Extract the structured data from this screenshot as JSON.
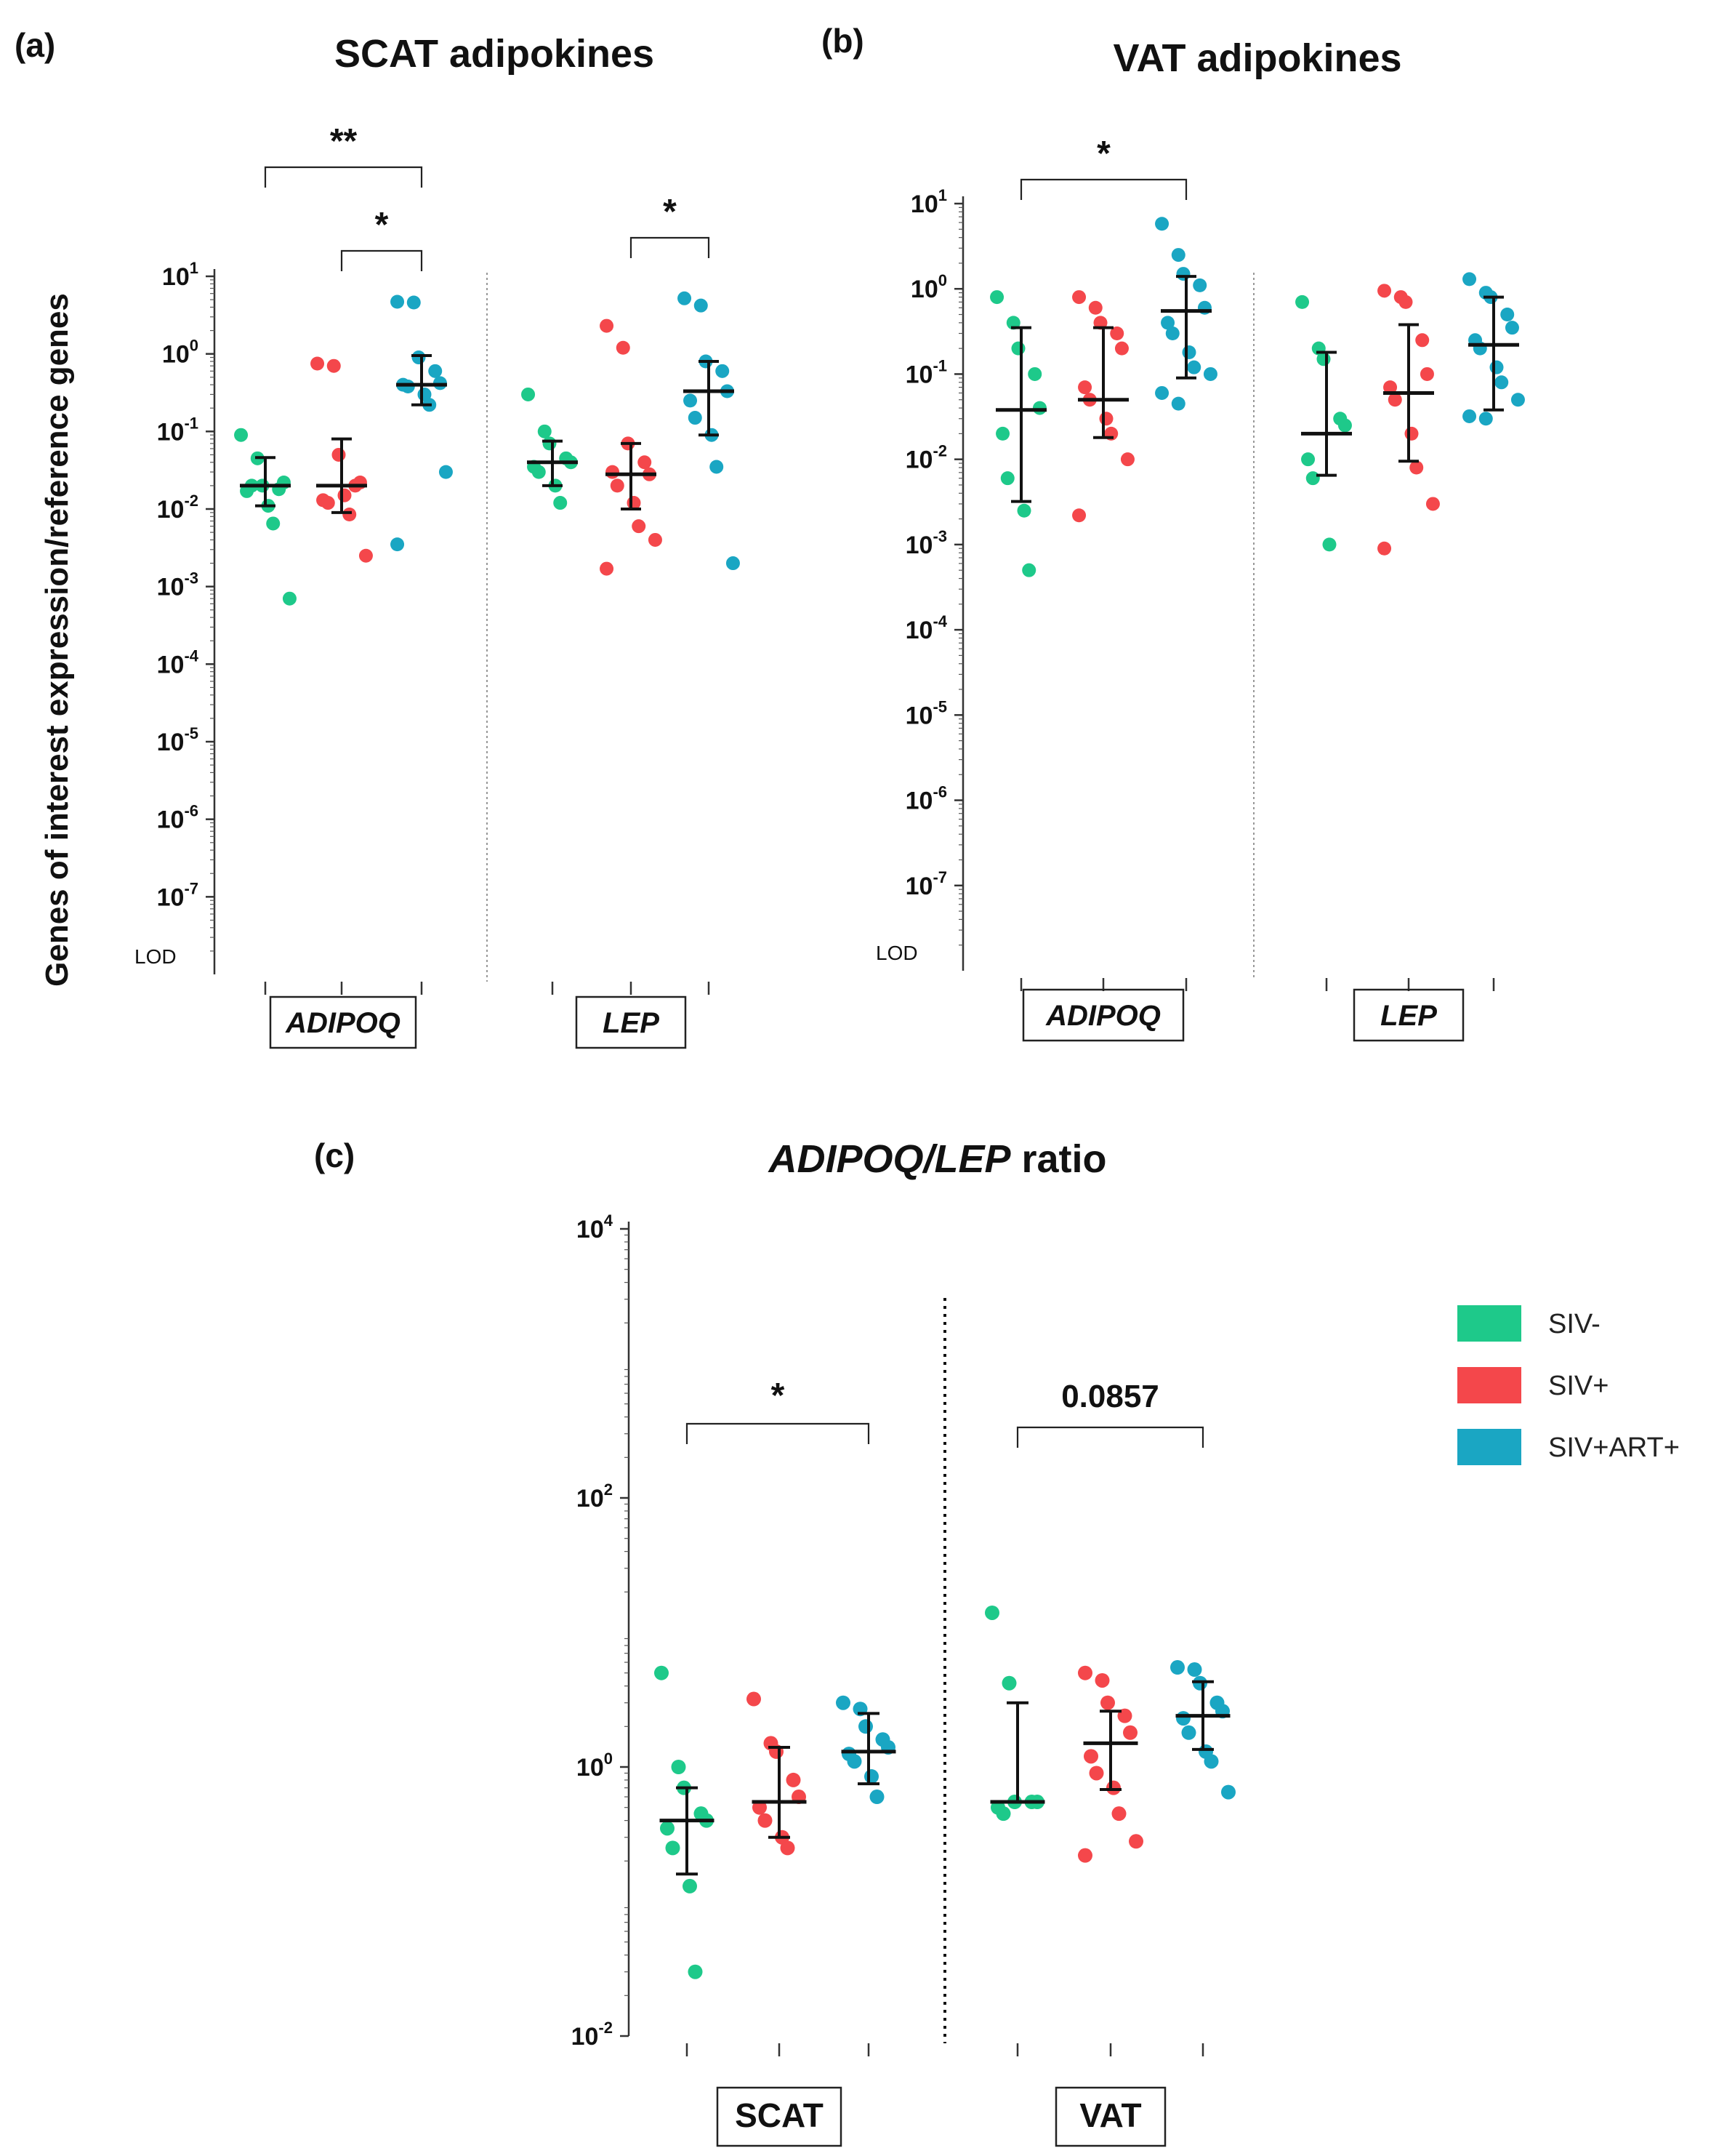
{
  "colors": {
    "SIV-": "#1ec98a",
    "SIV+": "#f4474b",
    "SIV+ART+": "#1aa6c3"
  },
  "legend": [
    {
      "label": "SIV-",
      "color": "#1ec98a"
    },
    {
      "label": "SIV+",
      "color": "#f4474b"
    },
    {
      "label": "SIV+ART+",
      "color": "#1aa6c3"
    }
  ],
  "ylabel_shared": "Genes of interest expression/reference genes",
  "chart_data": [
    {
      "panel": "(a)",
      "title": "SCAT adipokines",
      "type": "scatter",
      "yscale": "log",
      "ylim": [
        1e-08,
        10
      ],
      "ticks": [
        {
          "b": "10",
          "e": "1"
        },
        {
          "b": "10",
          "e": "0"
        },
        {
          "b": "10",
          "e": "-1"
        },
        {
          "b": "10",
          "e": "-2"
        },
        {
          "b": "10",
          "e": "-3"
        },
        {
          "b": "10",
          "e": "-4"
        },
        {
          "b": "10",
          "e": "-5"
        },
        {
          "b": "10",
          "e": "-6"
        },
        {
          "b": "10",
          "e": "-7"
        }
      ],
      "lod_label": "LOD",
      "categories": [
        "ADIPOQ",
        "LEP"
      ],
      "groups": [
        {
          "category": "ADIPOQ",
          "series": "SIV-",
          "median": 0.02,
          "range": [
            0.011,
            0.046
          ],
          "points": [
            0.09,
            0.045,
            0.02,
            0.018,
            0.022,
            0.017,
            0.02,
            0.011,
            0.0065,
            0.0007
          ]
        },
        {
          "category": "ADIPOQ",
          "series": "SIV+",
          "median": 0.02,
          "range": [
            0.009,
            0.08
          ],
          "points": [
            0.75,
            0.7,
            0.05,
            0.02,
            0.022,
            0.013,
            0.012,
            0.015,
            0.0085,
            0.0025
          ]
        },
        {
          "category": "ADIPOQ",
          "series": "SIV+ART+",
          "median": 0.4,
          "range": [
            0.22,
            0.95
          ],
          "points": [
            4.7,
            4.6,
            0.9,
            0.6,
            0.42,
            0.4,
            0.38,
            0.3,
            0.22,
            0.03,
            0.0035
          ]
        },
        {
          "category": "LEP",
          "series": "SIV-",
          "median": 0.04,
          "range": [
            0.02,
            0.075
          ],
          "points": [
            0.3,
            0.1,
            0.07,
            0.045,
            0.04,
            0.035,
            0.03,
            0.02,
            0.012
          ]
        },
        {
          "category": "LEP",
          "series": "SIV+",
          "median": 0.028,
          "range": [
            0.01,
            0.07
          ],
          "points": [
            2.3,
            1.2,
            0.07,
            0.04,
            0.028,
            0.03,
            0.02,
            0.012,
            0.006,
            0.004,
            0.0017
          ]
        },
        {
          "category": "LEP",
          "series": "SIV+ART+",
          "median": 0.33,
          "range": [
            0.09,
            0.8
          ],
          "points": [
            5.2,
            4.2,
            0.8,
            0.6,
            0.33,
            0.25,
            0.15,
            0.09,
            0.035,
            0.002
          ]
        }
      ],
      "brackets": [
        {
          "from": 0,
          "to": 2,
          "label": "**"
        },
        {
          "from": 1,
          "to": 2,
          "label": "*"
        },
        {
          "from": 4,
          "to": 5,
          "label": "*"
        }
      ]
    },
    {
      "panel": "(b)",
      "title": "VAT adipokines",
      "type": "scatter",
      "yscale": "log",
      "ylim": [
        1e-08,
        10
      ],
      "ticks": [
        {
          "b": "10",
          "e": "1"
        },
        {
          "b": "10",
          "e": "0"
        },
        {
          "b": "10",
          "e": "-1"
        },
        {
          "b": "10",
          "e": "-2"
        },
        {
          "b": "10",
          "e": "-3"
        },
        {
          "b": "10",
          "e": "-4"
        },
        {
          "b": "10",
          "e": "-5"
        },
        {
          "b": "10",
          "e": "-6"
        },
        {
          "b": "10",
          "e": "-7"
        }
      ],
      "lod_label": "LOD",
      "categories": [
        "ADIPOQ",
        "LEP"
      ],
      "groups": [
        {
          "category": "ADIPOQ",
          "series": "SIV-",
          "median": 0.038,
          "range": [
            0.0032,
            0.35
          ],
          "points": [
            0.8,
            0.4,
            0.2,
            0.1,
            0.04,
            0.02,
            0.006,
            0.0025,
            0.0005
          ]
        },
        {
          "category": "ADIPOQ",
          "series": "SIV+",
          "median": 0.05,
          "range": [
            0.018,
            0.35
          ],
          "points": [
            0.8,
            0.6,
            0.4,
            0.3,
            0.2,
            0.07,
            0.05,
            0.03,
            0.02,
            0.01,
            0.0022
          ]
        },
        {
          "category": "ADIPOQ",
          "series": "SIV+ART+",
          "median": 0.55,
          "range": [
            0.09,
            1.4
          ],
          "points": [
            5.8,
            2.5,
            1.5,
            1.1,
            0.6,
            0.4,
            0.3,
            0.18,
            0.12,
            0.1,
            0.06,
            0.045
          ]
        },
        {
          "category": "LEP",
          "series": "SIV-",
          "median": 0.02,
          "range": [
            0.0065,
            0.18
          ],
          "points": [
            0.7,
            0.2,
            0.15,
            0.03,
            0.025,
            0.01,
            0.006,
            0.001
          ]
        },
        {
          "category": "LEP",
          "series": "SIV+",
          "median": 0.06,
          "range": [
            0.0095,
            0.38
          ],
          "points": [
            0.95,
            0.8,
            0.7,
            0.25,
            0.1,
            0.07,
            0.05,
            0.02,
            0.008,
            0.003,
            0.0009
          ]
        },
        {
          "category": "LEP",
          "series": "SIV+ART+",
          "median": 0.22,
          "range": [
            0.038,
            0.8
          ],
          "points": [
            1.3,
            0.9,
            0.8,
            0.5,
            0.35,
            0.25,
            0.2,
            0.12,
            0.08,
            0.05,
            0.032,
            0.03
          ]
        }
      ],
      "brackets": [
        {
          "from": 0,
          "to": 2,
          "label": "*"
        }
      ]
    },
    {
      "panel": "(c)",
      "title_italic": "ADIPOQ/LEP",
      "title_rest": " ratio",
      "type": "scatter",
      "yscale": "log",
      "ylim": [
        0.01,
        10000
      ],
      "ticks": [
        {
          "b": "10",
          "e": "4"
        },
        {
          "b": "10",
          "e": "2"
        },
        {
          "b": "10",
          "e": "0"
        },
        {
          "b": "10",
          "e": "-2"
        }
      ],
      "categories": [
        "SCAT",
        "VAT"
      ],
      "groups": [
        {
          "category": "SCAT",
          "series": "SIV-",
          "median": 0.4,
          "range": [
            0.16,
            0.7
          ],
          "points": [
            5.0,
            1.0,
            0.7,
            0.45,
            0.4,
            0.35,
            0.25,
            0.13,
            0.03
          ]
        },
        {
          "category": "SCAT",
          "series": "SIV+",
          "median": 0.55,
          "range": [
            0.3,
            1.4
          ],
          "points": [
            3.2,
            1.5,
            1.3,
            0.8,
            0.6,
            0.5,
            0.4,
            0.3,
            0.25
          ]
        },
        {
          "category": "SCAT",
          "series": "SIV+ART+",
          "median": 1.3,
          "range": [
            0.75,
            2.5
          ],
          "points": [
            3.0,
            2.7,
            2.0,
            1.6,
            1.4,
            1.25,
            1.1,
            0.85,
            0.6
          ]
        },
        {
          "category": "VAT",
          "series": "SIV-",
          "median": 0.55,
          "range": [
            0.55,
            3.0
          ],
          "points": [
            14.0,
            4.2,
            0.55,
            0.55,
            0.55,
            0.5,
            0.45
          ]
        },
        {
          "category": "VAT",
          "series": "SIV+",
          "median": 1.5,
          "range": [
            0.68,
            2.6
          ],
          "points": [
            5.0,
            4.4,
            3.0,
            2.4,
            1.8,
            1.2,
            0.9,
            0.7,
            0.45,
            0.28,
            0.22
          ]
        },
        {
          "category": "VAT",
          "series": "SIV+ART+",
          "median": 2.4,
          "range": [
            1.35,
            4.3
          ],
          "points": [
            5.5,
            5.3,
            4.2,
            3.0,
            2.6,
            2.3,
            1.8,
            1.3,
            1.1,
            0.65
          ]
        }
      ],
      "brackets": [
        {
          "from": 0,
          "to": 2,
          "label": "*"
        },
        {
          "from": 3,
          "to": 5,
          "label": "0.0857"
        }
      ]
    }
  ]
}
